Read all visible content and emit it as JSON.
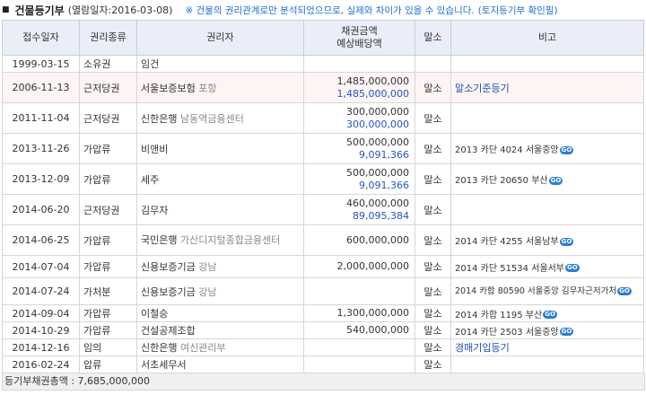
{
  "header": {
    "title": "건물등기부",
    "date_text": "(열람일자:2016-03-08)",
    "note": "※ 건물의 권리관계로만 분석되었으므로, 실제와 차이가 있을 수 있습니다.",
    "link": "(토지등기부 확인필)"
  },
  "table": {
    "columns": [
      "접수일자",
      "권리종류",
      "권리자",
      "채권금액",
      "예상배당액",
      "말소",
      "비고"
    ],
    "go_label": "GO",
    "rows": [
      {
        "date": "1999-03-15",
        "type": "소유권",
        "holder": "임건",
        "holder_sub": "",
        "amount": "",
        "dividend": "",
        "malso": "",
        "remark": ""
      },
      {
        "date": "2006-11-13",
        "type": "근저당권",
        "holder": "서울보증보험",
        "holder_sub": "포항",
        "amount": "1,485,000,000",
        "dividend": "1,485,000,000",
        "malso": "말소",
        "remark": "말소기준등기"
      },
      {
        "date": "2011-11-04",
        "type": "근저당권",
        "holder": "신한은행",
        "holder_sub": "남동역금융센터",
        "amount": "300,000,000",
        "dividend": "300,000,000",
        "malso": "말소",
        "remark": ""
      },
      {
        "date": "2013-11-26",
        "type": "가압류",
        "holder": "비앤비",
        "holder_sub": "",
        "amount": "500,000,000",
        "dividend": "9,091,366",
        "malso": "말소",
        "remark": "2013 카단 4024 서울중앙"
      },
      {
        "date": "2013-12-09",
        "type": "가압류",
        "holder": "세주",
        "holder_sub": "",
        "amount": "500,000,000",
        "dividend": "9,091,366",
        "malso": "말소",
        "remark": "2013 카단 20650 부산"
      },
      {
        "date": "2014-06-20",
        "type": "근저당권",
        "holder": "김무자",
        "holder_sub": "",
        "amount": "460,000,000",
        "dividend": "89,095,384",
        "malso": "말소",
        "remark": ""
      },
      {
        "date": "2014-06-25",
        "type": "가압류",
        "holder": "국민은행",
        "holder_sub": "가산디지털종합금융센터",
        "amount": "600,000,000",
        "dividend": "",
        "malso": "말소",
        "remark": "2014 카단 4255 서울남부"
      },
      {
        "date": "2014-07-04",
        "type": "가압류",
        "holder": "신용보증기금",
        "holder_sub": "강남",
        "amount": "2,000,000,000",
        "dividend": "",
        "malso": "말소",
        "remark": "2014 카단 51534 서울서부"
      },
      {
        "date": "2014-07-24",
        "type": "가처분",
        "holder": "신용보증기금",
        "holder_sub": "강남",
        "amount": "",
        "dividend": "",
        "malso": "말소",
        "remark": "2014 카합 80590 서울중앙 김무자근저가처"
      },
      {
        "date": "2014-09-04",
        "type": "가압류",
        "holder": "이철승",
        "holder_sub": "",
        "amount": "1,300,000,000",
        "dividend": "",
        "malso": "말소",
        "remark": "2014 카합 1195 부산"
      },
      {
        "date": "2014-10-29",
        "type": "가압류",
        "holder": "건설공제조합",
        "holder_sub": "",
        "amount": "540,000,000",
        "dividend": "",
        "malso": "말소",
        "remark": "2014 카단 2503 서울중앙"
      },
      {
        "date": "2014-12-16",
        "type": "임의",
        "holder": "신한은행",
        "holder_sub": "여신관리부",
        "amount": "",
        "dividend": "",
        "malso": "말소",
        "remark": "경매기입등기"
      },
      {
        "date": "2016-02-24",
        "type": "압류",
        "holder": "서초세무서",
        "holder_sub": "",
        "amount": "",
        "dividend": "",
        "malso": "말소",
        "remark": ""
      }
    ]
  },
  "footer": {
    "text": "등기부채권총액 : 7,685,000,000"
  }
}
